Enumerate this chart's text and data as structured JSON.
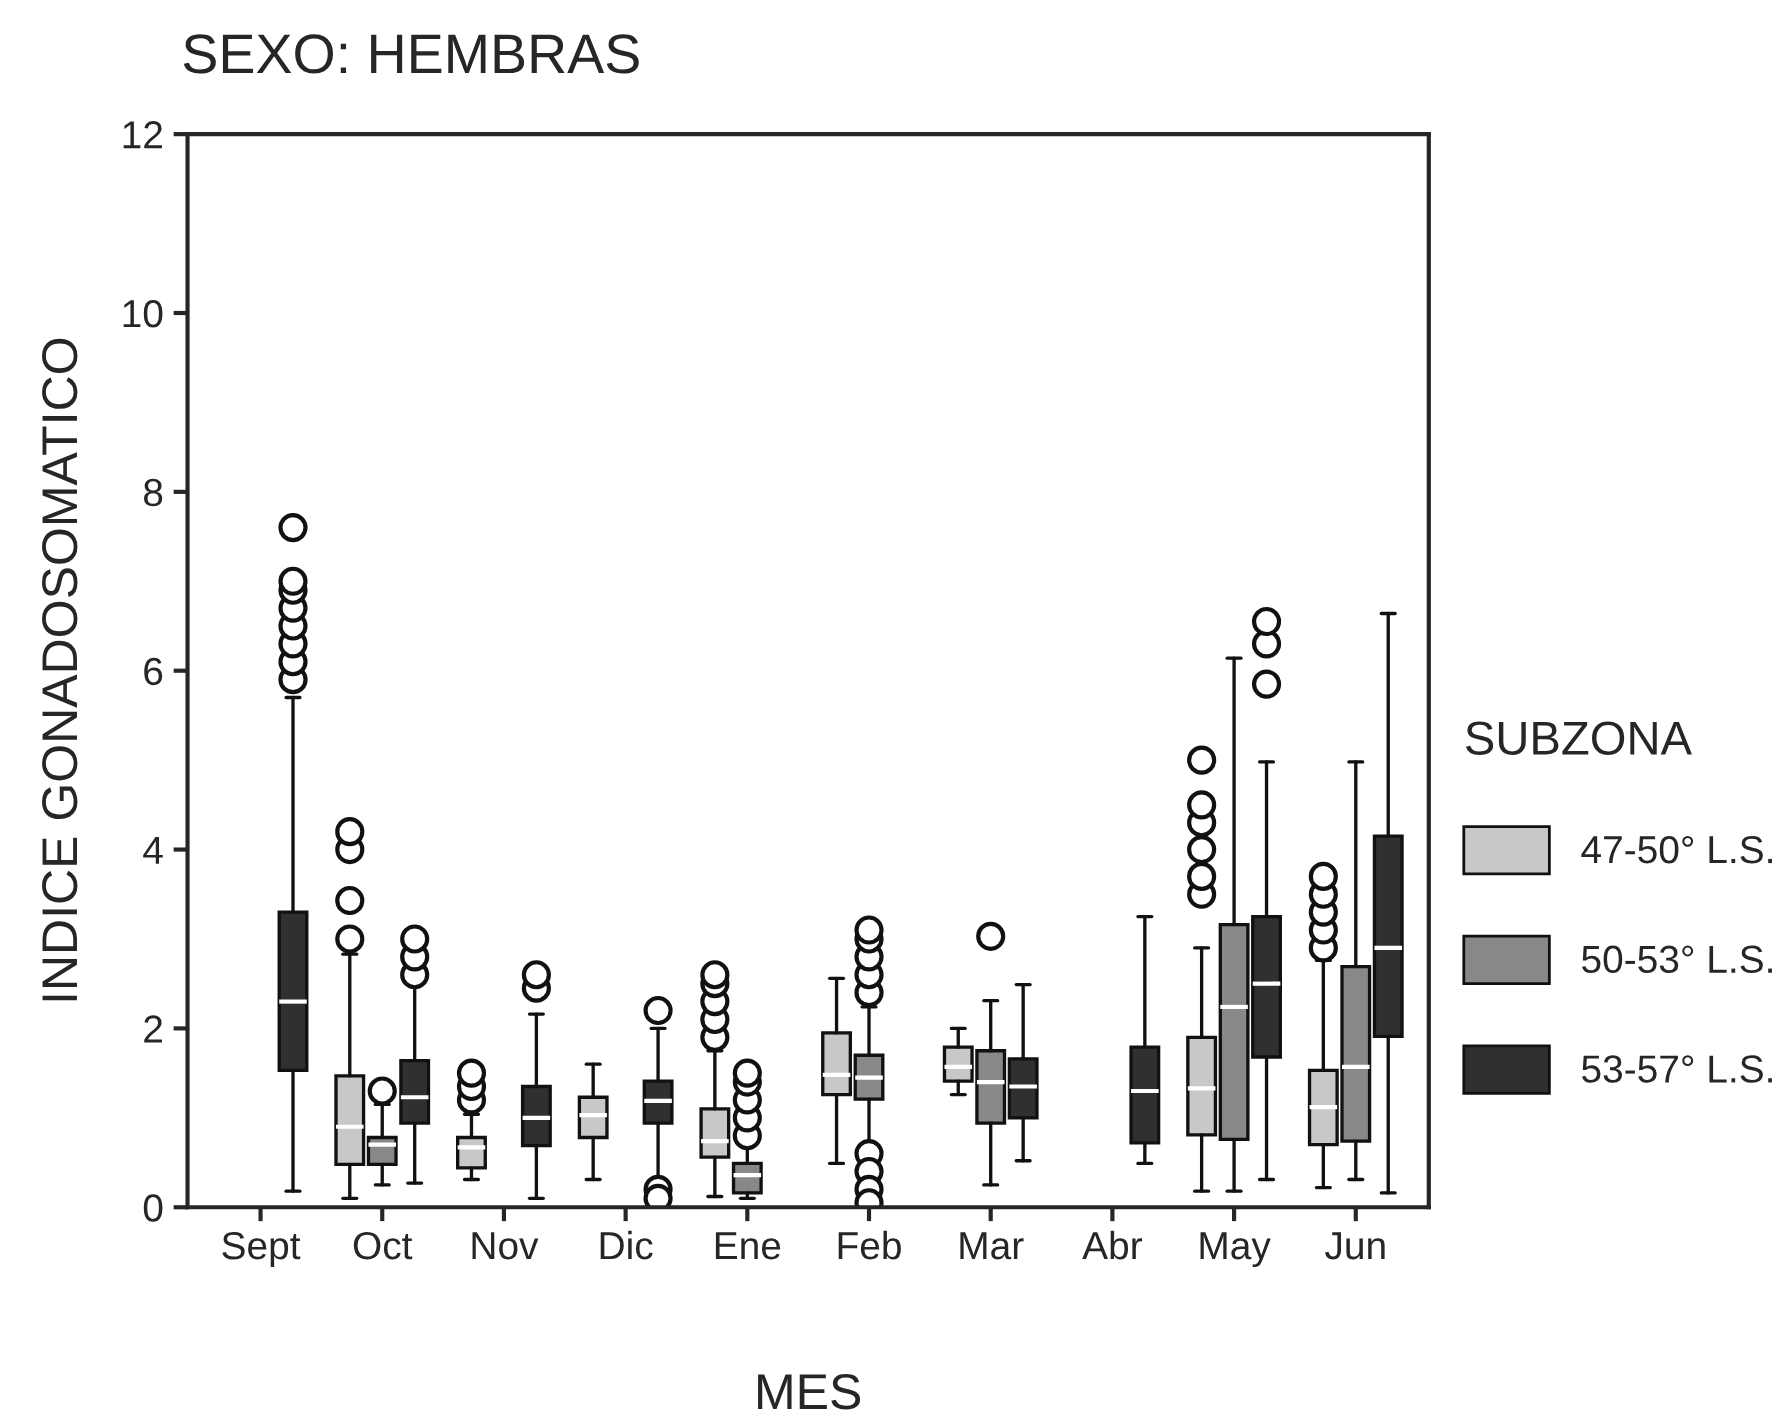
{
  "chart_data": {
    "type": "box",
    "title": "SEXO: HEMBRAS",
    "xlabel": "MES",
    "ylabel": "INDICE GONADOSOMATICO",
    "legend_title": "SUBZONA",
    "legend": "right",
    "grid": false,
    "categories": [
      "Sept",
      "Oct",
      "Nov",
      "Dic",
      "Ene",
      "Feb",
      "Mar",
      "Abr",
      "May",
      "Jun"
    ],
    "ylim": [
      0,
      12
    ],
    "yticks": [
      0,
      2,
      4,
      6,
      8,
      10,
      12
    ],
    "series": [
      {
        "name": "47-50° L.S.",
        "color": "#c8c8c8",
        "boxes": [
          null,
          {
            "low": 0.1,
            "q1": 0.48,
            "median": 0.9,
            "q3": 1.47,
            "high": 2.83,
            "outliers": [
              3.0,
              3.43,
              4.0,
              4.2
            ]
          },
          {
            "low": 0.31,
            "q1": 0.44,
            "median": 0.67,
            "q3": 0.78,
            "high": 1.04,
            "outliers": [
              1.2,
              1.35,
              1.5
            ]
          },
          {
            "low": 0.31,
            "q1": 0.78,
            "median": 1.03,
            "q3": 1.23,
            "high": 1.6
          },
          {
            "low": 0.12,
            "q1": 0.56,
            "median": 0.74,
            "q3": 1.1,
            "high": 1.75,
            "outliers": [
              1.9,
              2.1,
              2.3,
              2.5,
              2.6
            ]
          },
          {
            "low": 0.49,
            "q1": 1.26,
            "median": 1.48,
            "q3": 1.95,
            "high": 2.56
          },
          {
            "low": 1.26,
            "q1": 1.41,
            "median": 1.57,
            "q3": 1.79,
            "high": 2.0
          },
          null,
          {
            "low": 0.18,
            "q1": 0.81,
            "median": 1.33,
            "q3": 1.9,
            "high": 2.9,
            "outliers": [
              3.5,
              3.7,
              4.0,
              4.3,
              4.5,
              5.0
            ]
          },
          {
            "low": 0.22,
            "q1": 0.7,
            "median": 1.12,
            "q3": 1.53,
            "high": 2.76,
            "outliers": [
              2.9,
              3.1,
              3.3,
              3.5,
              3.7
            ]
          }
        ]
      },
      {
        "name": "50-53° L.S.",
        "color": "#888888",
        "boxes": [
          null,
          {
            "low": 0.25,
            "q1": 0.48,
            "median": 0.7,
            "q3": 0.78,
            "high": 1.15,
            "outliers": [
              1.3
            ]
          },
          null,
          null,
          {
            "low": 0.1,
            "q1": 0.16,
            "median": 0.36,
            "q3": 0.49,
            "high": 0.75,
            "outliers": [
              0.8,
              1.0,
              1.2,
              1.4,
              1.5
            ]
          },
          {
            "low": 0.67,
            "q1": 1.21,
            "median": 1.45,
            "q3": 1.7,
            "high": 2.24,
            "outliers": [
              2.4,
              2.6,
              2.8,
              3.0,
              3.1,
              0.6,
              0.4,
              0.2,
              0.05
            ]
          },
          {
            "low": 0.25,
            "q1": 0.94,
            "median": 1.4,
            "q3": 1.75,
            "high": 2.31,
            "outliers": [
              3.03
            ]
          },
          null,
          {
            "low": 0.18,
            "q1": 0.76,
            "median": 2.24,
            "q3": 3.16,
            "high": 6.14
          },
          {
            "low": 0.31,
            "q1": 0.74,
            "median": 1.57,
            "q3": 2.69,
            "high": 4.98
          }
        ]
      },
      {
        "name": "53-57° L.S.",
        "color": "#303030",
        "boxes": [
          {
            "low": 0.18,
            "q1": 1.53,
            "median": 2.3,
            "q3": 3.3,
            "high": 5.7,
            "outliers": [
              5.9,
              6.1,
              6.3,
              6.5,
              6.7,
              6.9,
              7.0,
              7.6
            ]
          },
          {
            "low": 0.27,
            "q1": 0.94,
            "median": 1.23,
            "q3": 1.64,
            "high": 2.62,
            "outliers": [
              2.6,
              2.8,
              3.0
            ]
          },
          {
            "low": 0.1,
            "q1": 0.69,
            "median": 1.0,
            "q3": 1.35,
            "high": 2.16,
            "outliers": [
              2.45,
              2.6
            ]
          },
          {
            "low": 0.18,
            "q1": 0.94,
            "median": 1.19,
            "q3": 1.41,
            "high": 2.0,
            "outliers": [
              2.2,
              0.2,
              0.1
            ]
          },
          null,
          null,
          {
            "low": 0.52,
            "q1": 1.0,
            "median": 1.35,
            "q3": 1.66,
            "high": 2.49
          },
          {
            "low": 0.49,
            "q1": 0.72,
            "median": 1.3,
            "q3": 1.79,
            "high": 3.25
          },
          {
            "low": 0.31,
            "q1": 1.68,
            "median": 2.5,
            "q3": 3.25,
            "high": 4.98,
            "outliers": [
              5.85,
              6.3,
              6.55
            ]
          },
          {
            "low": 0.16,
            "q1": 1.91,
            "median": 2.9,
            "q3": 4.15,
            "high": 6.64
          }
        ]
      }
    ]
  }
}
